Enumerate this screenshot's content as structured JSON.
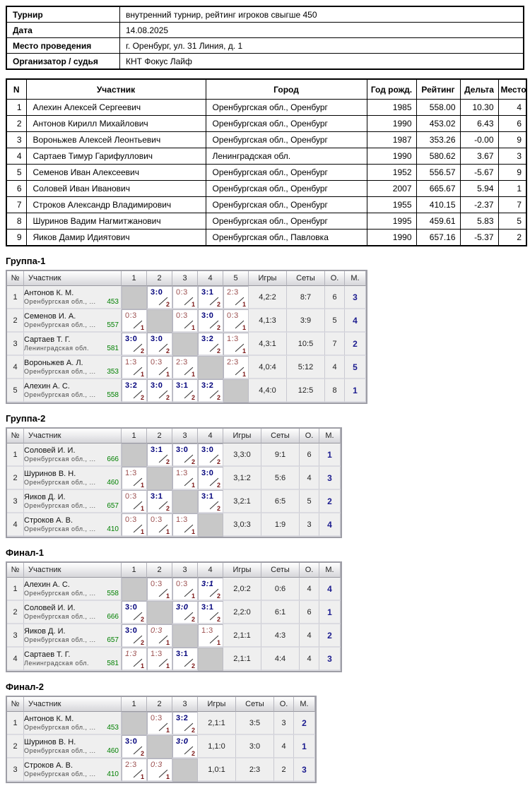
{
  "info": {
    "rows": [
      {
        "label": "Турнир",
        "value": "внутренний турнир, рейтинг игроков свыгше 450"
      },
      {
        "label": "Дата",
        "value": "14.08.2025"
      },
      {
        "label": "Место проведения",
        "value": "г. Оренбург, ул. 31 Линия, д. 1"
      },
      {
        "label": "Организатор / судья",
        "value": "КНТ Фокус Лайф"
      }
    ]
  },
  "players_table": {
    "headers": [
      "N",
      "Участник",
      "Город",
      "Год рожд.",
      "Рейтинг",
      "Дельта",
      "Место"
    ],
    "rows": [
      [
        "1",
        "Алехин Алексей Сергеевич",
        "Оренбургская обл., Оренбург",
        "1985",
        "558.00",
        "10.30",
        "4"
      ],
      [
        "2",
        "Антонов Кирилл Михайлович",
        "Оренбургская обл., Оренбург",
        "1990",
        "453.02",
        "6.43",
        "6"
      ],
      [
        "3",
        "Вороньжев Алексей Леонтьевич",
        "Оренбургская обл., Оренбург",
        "1987",
        "353.26",
        "-0.00",
        "9"
      ],
      [
        "4",
        "Сартаев Тимур Гарифуллович",
        "Ленинградская обл.",
        "1990",
        "580.62",
        "3.67",
        "3"
      ],
      [
        "5",
        "Семенов Иван Алексеевич",
        "Оренбургская обл., Оренбург",
        "1952",
        "556.57",
        "-5.67",
        "9"
      ],
      [
        "6",
        "Соловей Иван Иванович",
        "Оренбургская обл., Оренбург",
        "2007",
        "665.67",
        "5.94",
        "1"
      ],
      [
        "7",
        "Строков Александр Владимирович",
        "Оренбургская обл., Оренбург",
        "1955",
        "410.15",
        "-2.37",
        "7"
      ],
      [
        "8",
        "Шуринов Вадим Нагмитжанович",
        "Оренбургская обл., Оренбург",
        "1995",
        "459.61",
        "5.83",
        "5"
      ],
      [
        "9",
        "Яиков Дамир Идиятович",
        "Оренбургская обл., Павловка",
        "1990",
        "657.16",
        "-5.37",
        "2"
      ]
    ]
  },
  "group_common_headers": {
    "num": "№",
    "participant": "Участник",
    "games": "Игры",
    "sets": "Сеты",
    "points": "О.",
    "place": "М."
  },
  "groups": [
    {
      "title": "Группа-1",
      "score_cols": [
        "1",
        "2",
        "3",
        "4",
        "5"
      ],
      "rows": [
        {
          "num": "1",
          "name": "Антонов К. М.",
          "region": "Оренбургская обл., ...",
          "rating": "453",
          "cells": [
            null,
            {
              "s": "3:0",
              "p": "2",
              "w": true
            },
            {
              "s": "0:3",
              "p": "1"
            },
            {
              "s": "3:1",
              "p": "2",
              "w": true
            },
            {
              "s": "2:3",
              "p": "1"
            }
          ],
          "games": "4,2:2",
          "sets": "8:7",
          "points": "6",
          "place": "3"
        },
        {
          "num": "2",
          "name": "Семенов И. А.",
          "region": "Оренбургская обл., ...",
          "rating": "557",
          "cells": [
            {
              "s": "0:3",
              "p": "1"
            },
            null,
            {
              "s": "0:3",
              "p": "1"
            },
            {
              "s": "3:0",
              "p": "2",
              "w": true
            },
            {
              "s": "0:3",
              "p": "1"
            }
          ],
          "games": "4,1:3",
          "sets": "3:9",
          "points": "5",
          "place": "4"
        },
        {
          "num": "3",
          "name": "Сартаев Т. Г.",
          "region": "Ленинградская обл.",
          "rating": "581",
          "cells": [
            {
              "s": "3:0",
              "p": "2",
              "w": true
            },
            {
              "s": "3:0",
              "p": "2",
              "w": true
            },
            null,
            {
              "s": "3:2",
              "p": "2",
              "w": true
            },
            {
              "s": "1:3",
              "p": "1"
            }
          ],
          "games": "4,3:1",
          "sets": "10:5",
          "points": "7",
          "place": "2"
        },
        {
          "num": "4",
          "name": "Вороньжев А. Л.",
          "region": "Оренбургская обл., ...",
          "rating": "353",
          "cells": [
            {
              "s": "1:3",
              "p": "1"
            },
            {
              "s": "0:3",
              "p": "1"
            },
            {
              "s": "2:3",
              "p": "1"
            },
            null,
            {
              "s": "2:3",
              "p": "1"
            }
          ],
          "games": "4,0:4",
          "sets": "5:12",
          "points": "4",
          "place": "5"
        },
        {
          "num": "5",
          "name": "Алехин А. С.",
          "region": "Оренбургская обл., ...",
          "rating": "558",
          "cells": [
            {
              "s": "3:2",
              "p": "2",
              "w": true
            },
            {
              "s": "3:0",
              "p": "2",
              "w": true
            },
            {
              "s": "3:1",
              "p": "2",
              "w": true
            },
            {
              "s": "3:2",
              "p": "2",
              "w": true
            },
            null
          ],
          "games": "4,4:0",
          "sets": "12:5",
          "points": "8",
          "place": "1"
        }
      ]
    },
    {
      "title": "Группа-2",
      "score_cols": [
        "1",
        "2",
        "3",
        "4"
      ],
      "rows": [
        {
          "num": "1",
          "name": "Соловей И. И.",
          "region": "Оренбургская обл., ...",
          "rating": "666",
          "cells": [
            null,
            {
              "s": "3:1",
              "p": "2",
              "w": true
            },
            {
              "s": "3:0",
              "p": "2",
              "w": true
            },
            {
              "s": "3:0",
              "p": "2",
              "w": true
            }
          ],
          "games": "3,3:0",
          "sets": "9:1",
          "points": "6",
          "place": "1"
        },
        {
          "num": "2",
          "name": "Шуринов В. Н.",
          "region": "Оренбургская обл., ...",
          "rating": "460",
          "cells": [
            {
              "s": "1:3",
              "p": "1"
            },
            null,
            {
              "s": "1:3",
              "p": "1"
            },
            {
              "s": "3:0",
              "p": "2",
              "w": true
            }
          ],
          "games": "3,1:2",
          "sets": "5:6",
          "points": "4",
          "place": "3"
        },
        {
          "num": "3",
          "name": "Яиков Д. И.",
          "region": "Оренбургская обл., ...",
          "rating": "657",
          "cells": [
            {
              "s": "0:3",
              "p": "1"
            },
            {
              "s": "3:1",
              "p": "2",
              "w": true
            },
            null,
            {
              "s": "3:1",
              "p": "2",
              "w": true
            }
          ],
          "games": "3,2:1",
          "sets": "6:5",
          "points": "5",
          "place": "2"
        },
        {
          "num": "4",
          "name": "Строков А. В.",
          "region": "Оренбургская обл., ...",
          "rating": "410",
          "cells": [
            {
              "s": "0:3",
              "p": "1"
            },
            {
              "s": "0:3",
              "p": "1"
            },
            {
              "s": "1:3",
              "p": "1"
            },
            null
          ],
          "games": "3,0:3",
          "sets": "1:9",
          "points": "3",
          "place": "4"
        }
      ]
    },
    {
      "title": "Финал-1",
      "score_cols": [
        "1",
        "2",
        "3",
        "4"
      ],
      "rows": [
        {
          "num": "1",
          "name": "Алехин А. С.",
          "region": "Оренбургская обл., ...",
          "rating": "558",
          "cells": [
            null,
            {
              "s": "0:3",
              "p": "1"
            },
            {
              "s": "0:3",
              "p": "1"
            },
            {
              "s": "3:1",
              "p": "2",
              "w": true,
              "i": true
            }
          ],
          "games": "2,0:2",
          "sets": "0:6",
          "points": "4",
          "place": "4"
        },
        {
          "num": "2",
          "name": "Соловей И. И.",
          "region": "Оренбургская обл., ...",
          "rating": "666",
          "cells": [
            {
              "s": "3:0",
              "p": "2",
              "w": true
            },
            null,
            {
              "s": "3:0",
              "p": "2",
              "w": true,
              "i": true
            },
            {
              "s": "3:1",
              "p": "2",
              "w": true
            }
          ],
          "games": "2,2:0",
          "sets": "6:1",
          "points": "6",
          "place": "1"
        },
        {
          "num": "3",
          "name": "Яиков Д. И.",
          "region": "Оренбургская обл., ...",
          "rating": "657",
          "cells": [
            {
              "s": "3:0",
              "p": "2",
              "w": true
            },
            {
              "s": "0:3",
              "p": "1",
              "i": true
            },
            null,
            {
              "s": "1:3",
              "p": "1"
            }
          ],
          "games": "2,1:1",
          "sets": "4:3",
          "points": "4",
          "place": "2"
        },
        {
          "num": "4",
          "name": "Сартаев Т. Г.",
          "region": "Ленинградская обл.",
          "rating": "581",
          "cells": [
            {
              "s": "1:3",
              "p": "1",
              "i": true
            },
            {
              "s": "1:3",
              "p": "1"
            },
            {
              "s": "3:1",
              "p": "2",
              "w": true
            },
            null
          ],
          "games": "2,1:1",
          "sets": "4:4",
          "points": "4",
          "place": "3"
        }
      ]
    },
    {
      "title": "Финал-2",
      "score_cols": [
        "1",
        "2",
        "3"
      ],
      "rows": [
        {
          "num": "1",
          "name": "Антонов К. М.",
          "region": "Оренбургская обл., ...",
          "rating": "453",
          "cells": [
            null,
            {
              "s": "0:3",
              "p": "1"
            },
            {
              "s": "3:2",
              "p": "2",
              "w": true
            }
          ],
          "games": "2,1:1",
          "sets": "3:5",
          "points": "3",
          "place": "2"
        },
        {
          "num": "2",
          "name": "Шуринов В. Н.",
          "region": "Оренбургская обл., ...",
          "rating": "460",
          "cells": [
            {
              "s": "3:0",
              "p": "2",
              "w": true
            },
            null,
            {
              "s": "3:0",
              "p": "2",
              "w": true,
              "i": true
            }
          ],
          "games": "1,1:0",
          "sets": "3:0",
          "points": "4",
          "place": "1"
        },
        {
          "num": "3",
          "name": "Строков А. В.",
          "region": "Оренбургская обл., ...",
          "rating": "410",
          "cells": [
            {
              "s": "2:3",
              "p": "1"
            },
            {
              "s": "0:3",
              "p": "1",
              "i": true
            },
            null
          ],
          "games": "1,0:1",
          "sets": "2:3",
          "points": "2",
          "place": "3"
        }
      ]
    }
  ],
  "colors": {
    "win_score": "#00007b",
    "loss_score": "#9c5050",
    "point_digit": "#7a1616",
    "place": "#1c1c8f",
    "rating": "#008000",
    "diag_cell": "#c8c8c8",
    "row_bg": "#efefef"
  }
}
